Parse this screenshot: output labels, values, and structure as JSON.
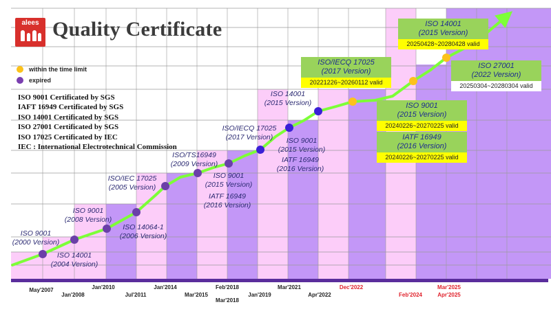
{
  "title": "Quality Certificate",
  "logo_text": "alees",
  "legend": [
    {
      "label": "within the time limit",
      "color": "#fcc21b"
    },
    {
      "label": "expired",
      "color": "#7a3fb0"
    }
  ],
  "cert_lines": [
    "ISO 9001 Certificated by SGS",
    "IAFT 16949 Certificated by  SGS",
    "ISO 14001 Certificated by  SGS",
    "ISO 27001 Certificated by  SGS",
    "ISO 17025 Certificated by IEC",
    "IEC : International Electrotechnical Commission"
  ],
  "colors": {
    "purple": "#c397f7",
    "pink": "#fccdf9",
    "grid": "#9a9a9a",
    "baseline": "#5a2d9c",
    "line": "#7dff38",
    "dot_expired": "#6b3fa8",
    "dot_blue": "#3a1fd6",
    "dot_valid": "#fcc21b"
  },
  "timeline_dates": [
    {
      "text": "May'2007",
      "red": false
    },
    {
      "text": "Jan'2008",
      "red": false
    },
    {
      "text": "Jan'2010",
      "red": false
    },
    {
      "text": "Jul'2011",
      "red": false
    },
    {
      "text": "Jan'2014",
      "red": false
    },
    {
      "text": "Mar'2015",
      "red": false
    },
    {
      "text": "Feb'2018",
      "red": false
    },
    {
      "text": "Mar'2018",
      "red": false
    },
    {
      "text": "Jan'2019",
      "red": false
    },
    {
      "text": "Mar'2021",
      "red": false
    },
    {
      "text": "Apr'2022",
      "red": false
    },
    {
      "text": "Dec'2022",
      "red": true
    },
    {
      "text": "Feb'2024",
      "red": true
    },
    {
      "text": "Mar'2025",
      "red": true
    },
    {
      "text": "Apr'2025",
      "red": true
    }
  ],
  "milestones": [
    {
      "label": "ISO 9001\n(2000 Version)",
      "status": "expired"
    },
    {
      "label": "ISO 14001\n(2004 Version)",
      "status": "expired"
    },
    {
      "label": "ISO 9001\n(2008 Version)",
      "status": "expired"
    },
    {
      "label": "ISO 14064-1\n(2006 Version)",
      "status": "expired"
    },
    {
      "label": "ISO/IEC 17025\n(2005 Version)",
      "status": "expired"
    },
    {
      "label": "ISO/TS16949\n(2009 Version)",
      "status": "expired"
    },
    {
      "label": "ISO 9001\n(2015 Version)",
      "status": "expired"
    },
    {
      "label": "IATF 16949\n(2016 Version)",
      "status": "expired"
    },
    {
      "label": "ISO/IECQ 17025\n(2017 Version)",
      "status": "expired"
    },
    {
      "label": "ISO 9001\n(2015 Version)",
      "status": "expired"
    },
    {
      "label": "IATF 16949\n(2016 Version)",
      "status": "expired"
    },
    {
      "label": "ISO 14001\n(2015 Version)",
      "status": "expired"
    }
  ],
  "boxes": [
    {
      "title": "ISO/IECQ 17025\n(2017 Version)",
      "valid": "20221226~20260112 valid",
      "white": false
    },
    {
      "title": "ISO 14001\n(2015 Version)",
      "valid": "20250428~20280428 valid",
      "white": false
    },
    {
      "title": "ISO 27001\n(2022 Version)",
      "valid": "20250304~20280304 valid",
      "white": true
    },
    {
      "title": "ISO 9001\n(2015 Version)",
      "valid": "20240226~20270225 valid",
      "white": false
    },
    {
      "title": "IATF 16949\n(2016 Version)",
      "valid": "20240226~20270225 valid",
      "white": false
    }
  ]
}
